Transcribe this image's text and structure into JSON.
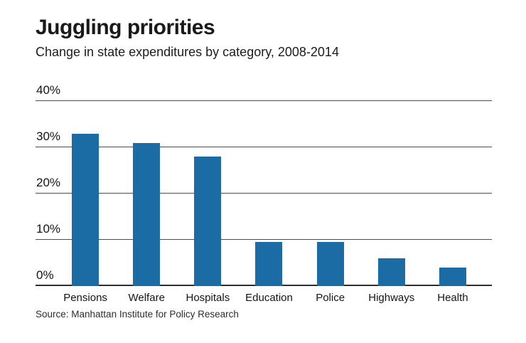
{
  "header": {
    "title": "Juggling priorities",
    "subtitle": "Change in state expenditures by category, 2008-2014"
  },
  "source": "Source: Manhattan Institute for Policy Research",
  "colors": {
    "bar": "#1b6ba5",
    "gridline": "#4d4d4d",
    "text": "#1a1a1a",
    "background": "#ffffff"
  },
  "chart_data": {
    "type": "bar",
    "title": "Juggling priorities",
    "subtitle": "Change in state expenditures by category, 2008-2014",
    "categories": [
      "Pensions",
      "Welfare",
      "Hospitals",
      "Education",
      "Police",
      "Highways",
      "Health"
    ],
    "values": [
      33,
      31,
      28,
      9.5,
      9.5,
      6,
      4
    ],
    "xlabel": "",
    "ylabel": "",
    "ylim": [
      0,
      40
    ],
    "yticks": [
      0,
      10,
      20,
      30,
      40
    ],
    "ytick_suffix": "%",
    "grid": true,
    "legend": false,
    "bar_color": "#1b6ba5",
    "source": "Source: Manhattan Institute for Policy Research"
  }
}
